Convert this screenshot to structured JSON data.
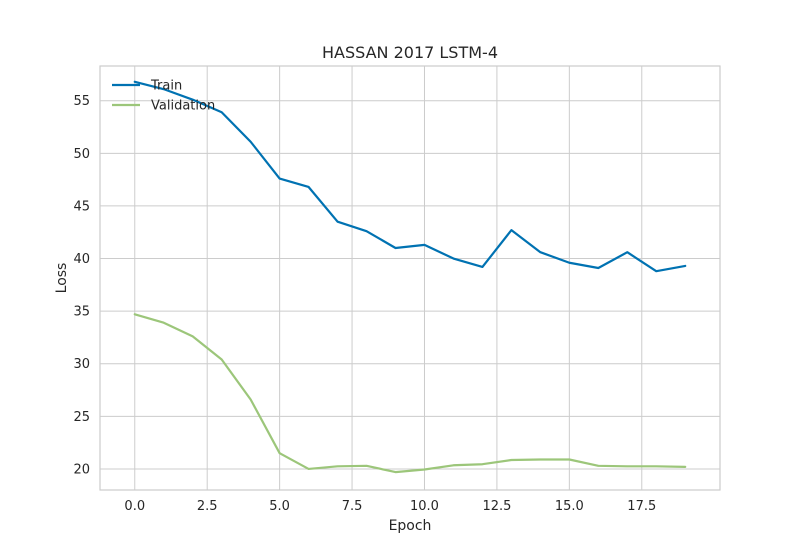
{
  "chart_data": {
    "type": "line",
    "title": "HASSAN 2017 LSTM-4",
    "xlabel": "Epoch",
    "ylabel": "Loss",
    "x": [
      0,
      1,
      2,
      3,
      4,
      5,
      6,
      7,
      8,
      9,
      10,
      11,
      12,
      13,
      14,
      15,
      16,
      17,
      18,
      19
    ],
    "xlim": [
      -1.2,
      20.2
    ],
    "ylim": [
      18,
      58.3
    ],
    "xticks": [
      0.0,
      2.5,
      5.0,
      7.5,
      10.0,
      12.5,
      15.0,
      17.5
    ],
    "xtick_labels": [
      "0.0",
      "2.5",
      "5.0",
      "7.5",
      "10.0",
      "12.5",
      "15.0",
      "17.5"
    ],
    "yticks": [
      20,
      25,
      30,
      35,
      40,
      45,
      50,
      55
    ],
    "ytick_labels": [
      "20",
      "25",
      "30",
      "35",
      "40",
      "45",
      "50",
      "55"
    ],
    "grid": true,
    "legend_position": "top-left",
    "series": [
      {
        "name": "Train",
        "color": "#0072b2",
        "values": [
          56.8,
          56.1,
          55.1,
          53.9,
          51.1,
          47.6,
          46.8,
          43.5,
          42.6,
          41.0,
          41.3,
          40.0,
          39.2,
          42.7,
          40.6,
          39.6,
          39.1,
          40.6,
          38.8,
          39.3
        ]
      },
      {
        "name": "Validation",
        "color": "#9cc67a",
        "values": [
          34.7,
          33.9,
          32.6,
          30.4,
          26.6,
          21.5,
          20.0,
          20.25,
          20.3,
          19.7,
          19.95,
          20.35,
          20.45,
          20.85,
          20.9,
          20.9,
          20.3,
          20.25,
          20.25,
          20.2
        ]
      }
    ]
  }
}
